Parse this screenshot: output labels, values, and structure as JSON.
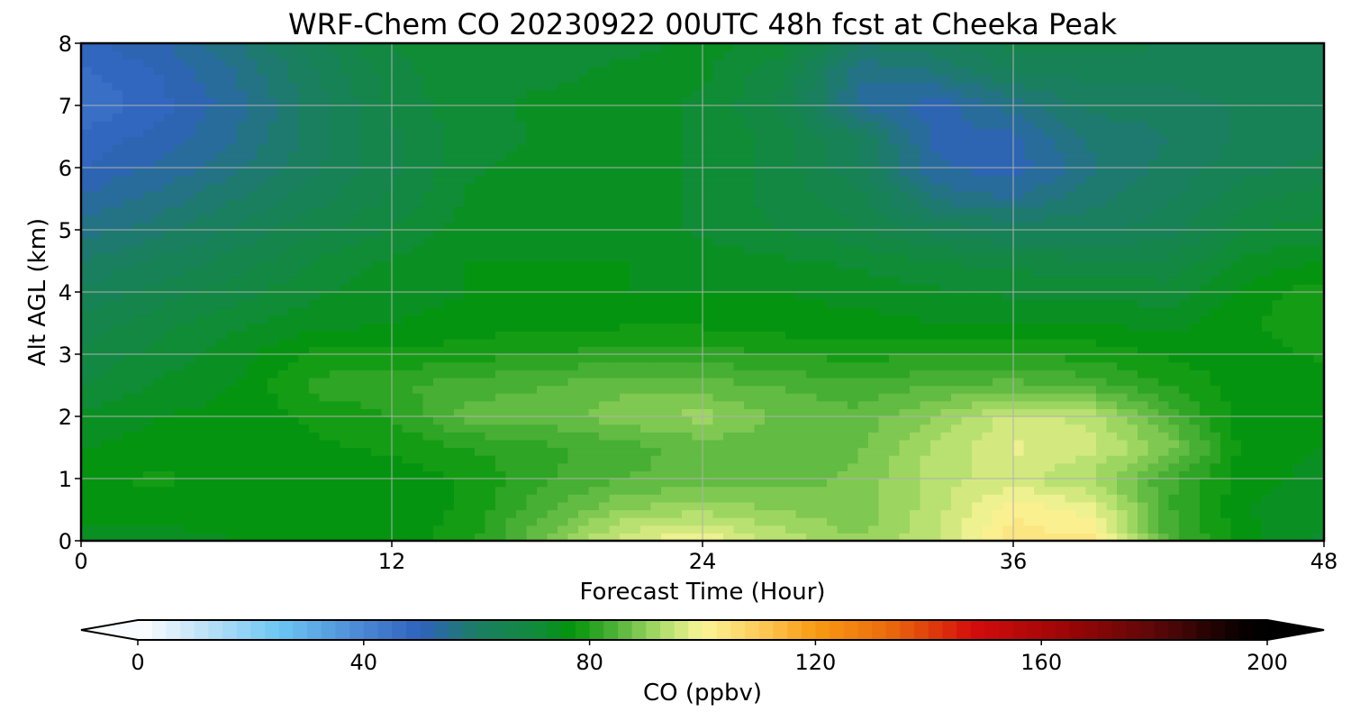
{
  "chart_data": {
    "type": "heatmap",
    "title": "WRF-Chem CO  20230922 00UTC 48h fcst at Cheeka Peak",
    "xlabel": "Forecast Time (Hour)",
    "ylabel": "Alt AGL (km)",
    "xlim": [
      0,
      48
    ],
    "ylim": [
      0,
      8
    ],
    "x_ticks": [
      0,
      12,
      24,
      36,
      48
    ],
    "y_ticks": [
      0,
      1,
      2,
      3,
      4,
      5,
      6,
      7,
      8
    ],
    "grid": true,
    "x": [
      0,
      3,
      6,
      9,
      12,
      15,
      18,
      21,
      24,
      27,
      30,
      33,
      36,
      39,
      42,
      45,
      48
    ],
    "y": [
      0,
      0.5,
      1,
      1.5,
      2,
      2.5,
      3,
      3.5,
      4,
      4.5,
      5,
      5.5,
      6,
      6.5,
      7,
      7.5,
      8
    ],
    "values_units": "ppbv",
    "z": [
      [
        74,
        74,
        75,
        76,
        76,
        79,
        88,
        97,
        100,
        94,
        90,
        95,
        104,
        103,
        84,
        76,
        72
      ],
      [
        76,
        76,
        76,
        76,
        76,
        78,
        85,
        90,
        92,
        90,
        88,
        94,
        102,
        99,
        83,
        75,
        73
      ],
      [
        77,
        78,
        76,
        76,
        76,
        78,
        82,
        85,
        86,
        86,
        88,
        94,
        96,
        92,
        83,
        76,
        74
      ],
      [
        75,
        76,
        76,
        77,
        78,
        80,
        82,
        84,
        86,
        86,
        87,
        93,
        98,
        96,
        89,
        76,
        75
      ],
      [
        73,
        75,
        76,
        78,
        80,
        86,
        86,
        89,
        91,
        87,
        86,
        90,
        96,
        94,
        84,
        76,
        75
      ],
      [
        70,
        73,
        75,
        81,
        82,
        84,
        85,
        87,
        86,
        85,
        83,
        85,
        86,
        84,
        80,
        76,
        76
      ],
      [
        68,
        71,
        74,
        78,
        78,
        79,
        80,
        81,
        81,
        80,
        79,
        80,
        80,
        79,
        77,
        76,
        78
      ],
      [
        66,
        69,
        72,
        74,
        75,
        76,
        77,
        77,
        77,
        76,
        76,
        75,
        75,
        75,
        74,
        77,
        80
      ],
      [
        63,
        66,
        69,
        72,
        74,
        75,
        75,
        75,
        75,
        75,
        74,
        73,
        72,
        72,
        71,
        76,
        79
      ],
      [
        60,
        63,
        66,
        70,
        73,
        75,
        75,
        75,
        74,
        73,
        72,
        70,
        69,
        68,
        68,
        73,
        75
      ],
      [
        56,
        59,
        63,
        67,
        70,
        74,
        75,
        74,
        72,
        70,
        68,
        64,
        62,
        62,
        64,
        70,
        71
      ],
      [
        53,
        56,
        60,
        64,
        68,
        73,
        75,
        74,
        72,
        69,
        66,
        57,
        55,
        59,
        62,
        67,
        69
      ],
      [
        50,
        53,
        57,
        62,
        67,
        72,
        74,
        74,
        72,
        69,
        63,
        53,
        51,
        57,
        61,
        64,
        66
      ],
      [
        48,
        51,
        55,
        61,
        67,
        71,
        73,
        74,
        72,
        69,
        62,
        52,
        52,
        58,
        60,
        63,
        64
      ],
      [
        45,
        49,
        54,
        61,
        68,
        72,
        73,
        74,
        72,
        67,
        55,
        51,
        56,
        61,
        61,
        63,
        64
      ],
      [
        47,
        50,
        55,
        62,
        69,
        72,
        72,
        73,
        73,
        68,
        55,
        57,
        62,
        63,
        63,
        64,
        64
      ],
      [
        49,
        52,
        57,
        64,
        70,
        72,
        72,
        72,
        73,
        72,
        60,
        62,
        66,
        66,
        65,
        65,
        65
      ]
    ],
    "colorbar": {
      "label": "CO  (ppbv)",
      "min": 0,
      "max": 200,
      "step": 2.5,
      "extend": "both",
      "ticks": [
        0,
        40,
        80,
        120,
        160,
        200
      ],
      "stops": [
        [
          0,
          "#ffffff"
        ],
        [
          10,
          "#c8e6f8"
        ],
        [
          25,
          "#6cc6f4"
        ],
        [
          40,
          "#4a86d4"
        ],
        [
          50,
          "#2f62bd"
        ],
        [
          60,
          "#1b7d64"
        ],
        [
          70,
          "#118a3e"
        ],
        [
          77,
          "#03950a"
        ],
        [
          85,
          "#53b43a"
        ],
        [
          93,
          "#b0df6c"
        ],
        [
          100,
          "#fbf598"
        ],
        [
          110,
          "#fccc5a"
        ],
        [
          120,
          "#f89b12"
        ],
        [
          133,
          "#eb6b0c"
        ],
        [
          148,
          "#d40c0c"
        ],
        [
          165,
          "#9b0505"
        ],
        [
          180,
          "#5c0808"
        ],
        [
          195,
          "#0a0000"
        ],
        [
          200,
          "#000000"
        ]
      ]
    }
  }
}
